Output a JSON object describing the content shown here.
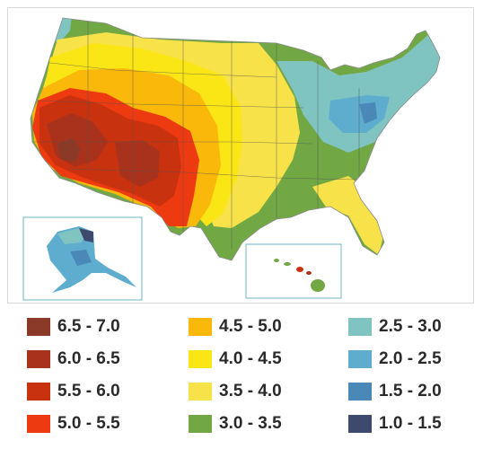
{
  "legend": {
    "items": [
      {
        "label": "6.5 - 7.0",
        "color": "#8a3a26"
      },
      {
        "label": "6.0 - 6.5",
        "color": "#a8321b"
      },
      {
        "label": "5.5 - 6.0",
        "color": "#c8320e"
      },
      {
        "label": "5.0 - 5.5",
        "color": "#ee3a10"
      },
      {
        "label": "4.5 - 5.0",
        "color": "#fab80a"
      },
      {
        "label": "4.0 - 4.5",
        "color": "#fbe615"
      },
      {
        "label": "3.5 - 4.0",
        "color": "#f8e24a"
      },
      {
        "label": "3.0 - 3.5",
        "color": "#72a843"
      },
      {
        "label": "2.5 - 3.0",
        "color": "#7fc4c0"
      },
      {
        "label": "2.0 - 2.5",
        "color": "#5eadcf"
      },
      {
        "label": "1.5 - 2.0",
        "color": "#4a88b8"
      },
      {
        "label": "1.0 - 1.5",
        "color": "#3d4a6e"
      }
    ]
  },
  "map": {
    "regions": [
      {
        "name": "conus",
        "class": "3.0 - 3.5"
      },
      {
        "name": "alaska",
        "class": "2.0 - 2.5"
      },
      {
        "name": "hawaii",
        "class": "5.0 - 5.5"
      }
    ]
  }
}
